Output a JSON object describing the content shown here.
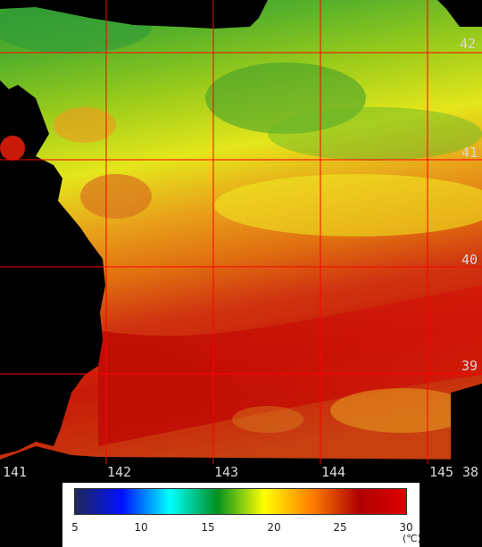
{
  "map": {
    "lat_labels": [
      "42",
      "41",
      "40",
      "39",
      "38"
    ],
    "lon_labels": [
      "141",
      "142",
      "143",
      "144",
      "145"
    ],
    "land_color": "#000000",
    "grid_color": "#ff0000"
  },
  "legend": {
    "ticks": [
      "5",
      "10",
      "15",
      "20",
      "25",
      "30"
    ],
    "unit": "(℃)",
    "min": 5,
    "max": 30,
    "colors": [
      "#202858",
      "#0010ff",
      "#00ffff",
      "#009020",
      "#ffff00",
      "#ff8000",
      "#b00000",
      "#e00000"
    ]
  }
}
